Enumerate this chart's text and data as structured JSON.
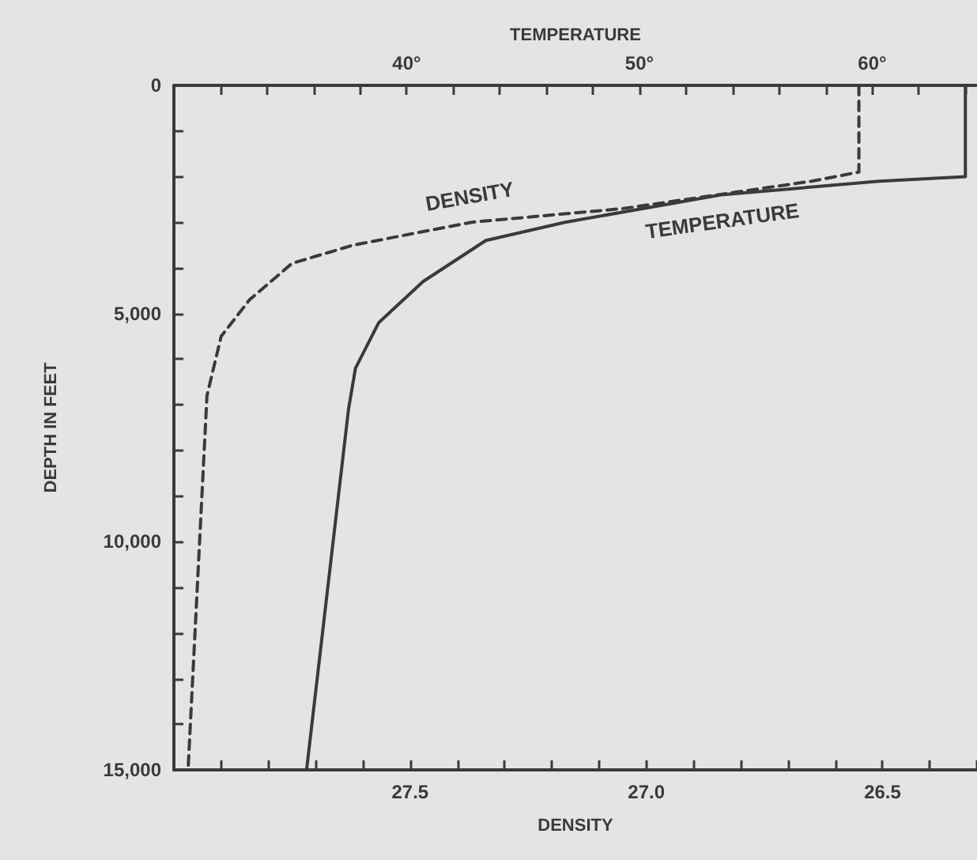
{
  "chart_data": {
    "type": "line",
    "xlabel": "DENSITY",
    "x2label": "TEMPERATURE",
    "ylabel": "DEPTH IN FEET",
    "xlim": [
      28,
      26.3
    ],
    "xticks": [
      {
        "value": 27.9,
        "label": null
      },
      {
        "value": 27.8,
        "label": null
      },
      {
        "value": 27.7,
        "label": null
      },
      {
        "value": 27.6,
        "label": null
      },
      27.5,
      {
        "value": 27.4,
        "label": null
      },
      {
        "value": 27.3,
        "label": null
      },
      {
        "value": 27.2,
        "label": null
      },
      {
        "value": 27.1,
        "label": null
      },
      {
        "value": 27,
        "label": "27.0"
      },
      {
        "value": 26.9,
        "label": null
      },
      {
        "value": 26.8,
        "label": null
      },
      {
        "value": 26.7,
        "label": null
      },
      {
        "value": 26.6,
        "label": null
      },
      26.5,
      {
        "value": 26.4,
        "label": null
      },
      {
        "value": 26.3,
        "label": null
      }
    ],
    "x2lim": [
      30,
      64.5
    ],
    "x2ticks": [
      {
        "value": 32,
        "label": null
      },
      {
        "value": 34,
        "label": null
      },
      {
        "value": 36,
        "label": null
      },
      {
        "value": 38,
        "label": null
      },
      {
        "value": 40,
        "label": "40°"
      },
      {
        "value": 42,
        "label": null
      },
      {
        "value": 44,
        "label": null
      },
      {
        "value": 46,
        "label": null
      },
      {
        "value": 48,
        "label": null
      },
      {
        "value": 50,
        "label": "50°"
      },
      {
        "value": 52,
        "label": null
      },
      {
        "value": 54,
        "label": null
      },
      {
        "value": 56,
        "label": null
      },
      {
        "value": 58,
        "label": null
      },
      {
        "value": 60,
        "label": "60°"
      },
      {
        "value": 62,
        "label": null
      },
      {
        "value": 64,
        "label": null
      }
    ],
    "ylim": [
      15000,
      0
    ],
    "yticks": [
      0,
      {
        "value": 1000,
        "label": null
      },
      {
        "value": 2000,
        "label": null
      },
      {
        "value": 3000,
        "label": null
      },
      {
        "value": 4000,
        "label": null
      },
      {
        "value": 5000,
        "label": "5,000"
      },
      {
        "value": 6000,
        "label": null
      },
      {
        "value": 7000,
        "label": null
      },
      {
        "value": 8000,
        "label": null
      },
      {
        "value": 9000,
        "label": null
      },
      {
        "value": 10000,
        "label": "10,000"
      },
      {
        "value": 11000,
        "label": null
      },
      {
        "value": 12000,
        "label": null
      },
      {
        "value": 13000,
        "label": null
      },
      {
        "value": 14000,
        "label": null
      },
      {
        "value": 15000,
        "label": "15,000"
      }
    ],
    "grid": false,
    "legend": false,
    "marker": "none",
    "series": [
      {
        "name": "DENSITY",
        "color": "#3a3a3a",
        "line_style": "dashed",
        "x": [
          26.55,
          26.55,
          26.65,
          27.05,
          27.37,
          27.62,
          27.75,
          27.84,
          27.9,
          27.93,
          27.97
        ],
        "values": [
          0,
          1900,
          2100,
          2700,
          3000,
          3500,
          3900,
          4700,
          5500,
          6800,
          15000
        ]
      },
      {
        "name": "TEMPERATURE",
        "color": "#3a3a3a",
        "line_style": "solid",
        "axis": "x2",
        "x": [
          64,
          64,
          60.3,
          53.5,
          46.8,
          43.4,
          40.7,
          38.8,
          37.8,
          37.5,
          35.7
        ],
        "values": [
          0,
          2000,
          2100,
          2400,
          3000,
          3400,
          4300,
          5200,
          6200,
          7100,
          15000
        ]
      }
    ]
  }
}
